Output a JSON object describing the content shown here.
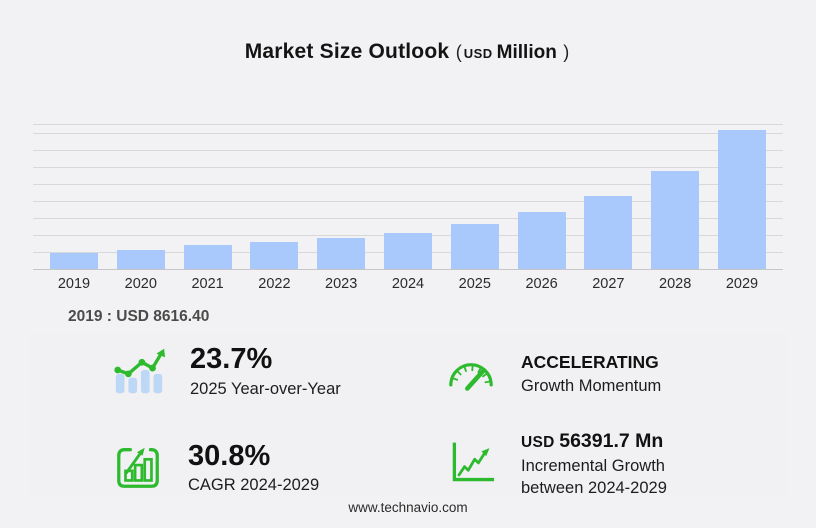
{
  "title": {
    "main": "Market Size Outlook",
    "paren_open": "(",
    "unit_small": "USD",
    "unit_big": "Million",
    "paren_close": ")"
  },
  "chart_data": {
    "type": "bar",
    "title": "Market Size Outlook (USD Million)",
    "xlabel": "",
    "ylabel": "USD Million",
    "categories": [
      "2019",
      "2020",
      "2021",
      "2022",
      "2023",
      "2024",
      "2025",
      "2026",
      "2027",
      "2028",
      "2029"
    ],
    "values": [
      8616.4,
      10600,
      13000,
      14700,
      17100,
      19933.5,
      24657.7,
      31000,
      40200,
      53600,
      76325.2
    ],
    "ylim": [
      0,
      80000
    ],
    "grid": true,
    "legend": "none",
    "bar_color": "#a9c8fb"
  },
  "annotation_2019": "2019 : USD  8616.40",
  "stats": [
    {
      "icon": "trend-bars-icon",
      "value": "23.7%",
      "label": "2025 Year-over-Year"
    },
    {
      "icon": "speedometer-icon",
      "value": "ACCELERATING",
      "label": "Growth Momentum"
    },
    {
      "icon": "bar-frame-arrow-icon",
      "value": "30.8%",
      "label": "CAGR 2024-2029"
    },
    {
      "icon": "line-chart-icon",
      "value_prefix": "USD ",
      "value": "56391.7 Mn",
      "label": "Incremental Growth between 2024-2029"
    }
  ],
  "footer": {
    "url": "www.technavio.com"
  },
  "colors": {
    "background": "#f2f2f4",
    "bar_blue": "#a9c8fb",
    "icon_bar_blue": "#bdd7f6",
    "accent_green": "#2eba2e",
    "gridline": "#d8d8da"
  }
}
